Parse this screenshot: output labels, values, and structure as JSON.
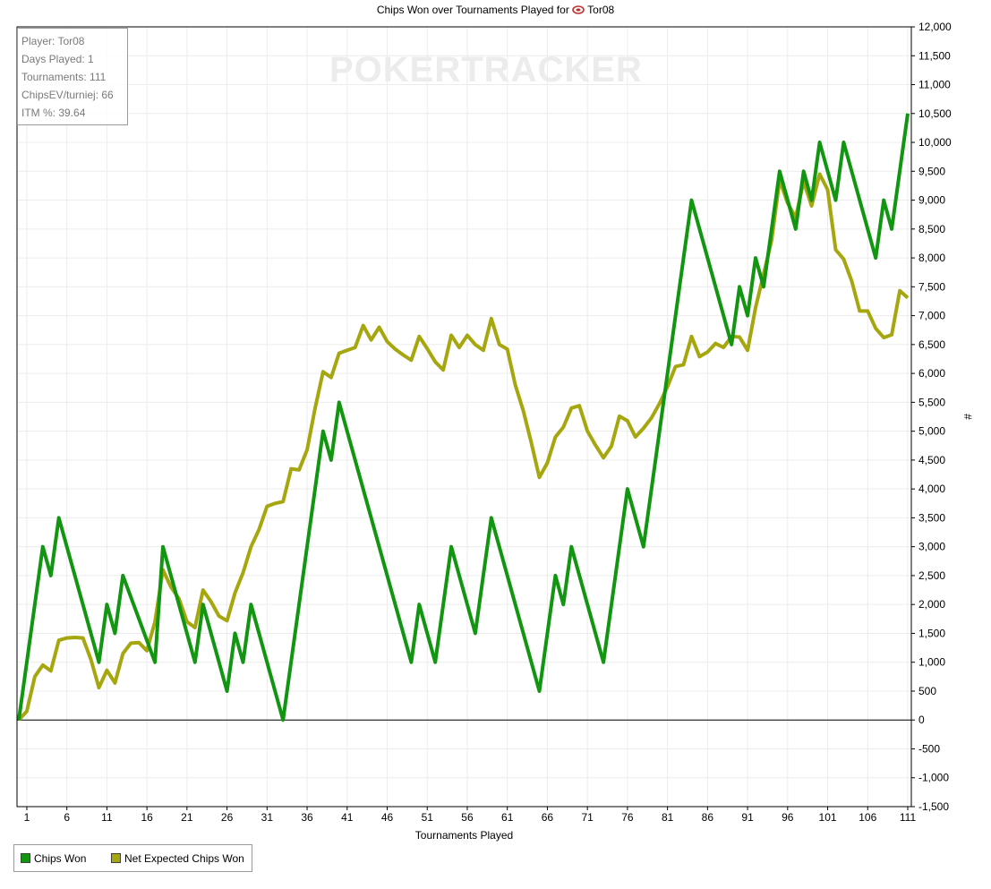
{
  "colors": {
    "chips_won": "#129612",
    "net_expected": "#a6a60e",
    "grid": "#ececec",
    "zero_line": "#000000"
  },
  "watermark": "POKERTRACKER",
  "info_box": {
    "lines": [
      "Player: Tor08",
      "Days Played: 1",
      "Tournaments: 111",
      "ChipsEV/turniej: 66",
      "ITM %: 39.64"
    ]
  },
  "chart_data": {
    "type": "line",
    "title": "Chips Won over Tournaments Played for",
    "player_name": "Tor08",
    "xlabel": "Tournaments Played",
    "ylabel": "#",
    "xlim": [
      0,
      111
    ],
    "ylim": [
      -1500,
      12000
    ],
    "x_ticks": [
      1,
      6,
      11,
      16,
      21,
      26,
      31,
      36,
      41,
      46,
      51,
      56,
      61,
      66,
      71,
      76,
      81,
      86,
      91,
      96,
      101,
      106,
      111
    ],
    "y_ticks": [
      -1500,
      -1000,
      -500,
      0,
      500,
      1000,
      1500,
      2000,
      2500,
      3000,
      3500,
      4000,
      4500,
      5000,
      5500,
      6000,
      6500,
      7000,
      7500,
      8000,
      8500,
      9000,
      9500,
      10000,
      10500,
      11000,
      11500,
      12000
    ],
    "y_tick_labels": [
      "-1,500",
      "-1,000",
      "-500",
      "0",
      "500",
      "1,000",
      "1,500",
      "2,000",
      "2,500",
      "3,000",
      "3,500",
      "4,000",
      "4,500",
      "5,000",
      "5,500",
      "6,000",
      "6,500",
      "7,000",
      "7,500",
      "8,000",
      "8,500",
      "9,000",
      "9,500",
      "10,000",
      "10,500",
      "11,000",
      "11,500",
      "12,000"
    ],
    "grid": true,
    "legend_position": "bottom-left",
    "series": [
      {
        "name": "Chips Won",
        "points": [
          [
            0,
            0
          ],
          [
            3,
            3000
          ],
          [
            4,
            2500
          ],
          [
            5,
            3500
          ],
          [
            10,
            1000
          ],
          [
            11,
            2000
          ],
          [
            12,
            1500
          ],
          [
            13,
            2500
          ],
          [
            17,
            1000
          ],
          [
            18,
            3000
          ],
          [
            22,
            1000
          ],
          [
            23,
            2000
          ],
          [
            26,
            500
          ],
          [
            27,
            1500
          ],
          [
            28,
            1000
          ],
          [
            29,
            2000
          ],
          [
            33,
            0
          ],
          [
            38,
            5000
          ],
          [
            39,
            4500
          ],
          [
            40,
            5500
          ],
          [
            49,
            1000
          ],
          [
            50,
            2000
          ],
          [
            52,
            1000
          ],
          [
            54,
            3000
          ],
          [
            57,
            1500
          ],
          [
            59,
            3500
          ],
          [
            65,
            500
          ],
          [
            67,
            2500
          ],
          [
            68,
            2000
          ],
          [
            69,
            3000
          ],
          [
            73,
            1000
          ],
          [
            76,
            4000
          ],
          [
            78,
            3000
          ],
          [
            84,
            9000
          ],
          [
            89,
            6500
          ],
          [
            90,
            7500
          ],
          [
            91,
            7000
          ],
          [
            92,
            8000
          ],
          [
            93,
            7500
          ],
          [
            95,
            9500
          ],
          [
            97,
            8500
          ],
          [
            98,
            9500
          ],
          [
            99,
            9000
          ],
          [
            100,
            10000
          ],
          [
            102,
            9000
          ],
          [
            103,
            10000
          ],
          [
            107,
            8000
          ],
          [
            108,
            9000
          ],
          [
            109,
            8500
          ],
          [
            111,
            10500
          ]
        ]
      },
      {
        "name": "Net Expected Chips Won",
        "points": [
          [
            0,
            0
          ],
          [
            1,
            150
          ],
          [
            2,
            750
          ],
          [
            3,
            950
          ],
          [
            4,
            850
          ],
          [
            5,
            1380
          ],
          [
            6,
            1420
          ],
          [
            7,
            1430
          ],
          [
            8,
            1420
          ],
          [
            9,
            1050
          ],
          [
            10,
            560
          ],
          [
            11,
            860
          ],
          [
            12,
            640
          ],
          [
            13,
            1150
          ],
          [
            14,
            1330
          ],
          [
            15,
            1340
          ],
          [
            16,
            1200
          ],
          [
            17,
            1700
          ],
          [
            18,
            2600
          ],
          [
            19,
            2300
          ],
          [
            20,
            2100
          ],
          [
            21,
            1700
          ],
          [
            22,
            1600
          ],
          [
            23,
            2250
          ],
          [
            24,
            2050
          ],
          [
            25,
            1800
          ],
          [
            26,
            1720
          ],
          [
            27,
            2200
          ],
          [
            28,
            2550
          ],
          [
            29,
            3000
          ],
          [
            30,
            3300
          ],
          [
            31,
            3700
          ],
          [
            32,
            3750
          ],
          [
            33,
            3780
          ],
          [
            34,
            4350
          ],
          [
            35,
            4330
          ],
          [
            36,
            4680
          ],
          [
            37,
            5400
          ],
          [
            38,
            6030
          ],
          [
            39,
            5930
          ],
          [
            40,
            6350
          ],
          [
            41,
            6400
          ],
          [
            42,
            6450
          ],
          [
            43,
            6830
          ],
          [
            44,
            6580
          ],
          [
            45,
            6800
          ],
          [
            46,
            6550
          ],
          [
            47,
            6420
          ],
          [
            48,
            6320
          ],
          [
            49,
            6230
          ],
          [
            50,
            6640
          ],
          [
            51,
            6430
          ],
          [
            52,
            6200
          ],
          [
            53,
            6060
          ],
          [
            54,
            6660
          ],
          [
            55,
            6450
          ],
          [
            56,
            6660
          ],
          [
            57,
            6500
          ],
          [
            58,
            6400
          ],
          [
            59,
            6950
          ],
          [
            60,
            6500
          ],
          [
            61,
            6420
          ],
          [
            62,
            5800
          ],
          [
            63,
            5350
          ],
          [
            64,
            4800
          ],
          [
            65,
            4200
          ],
          [
            66,
            4450
          ],
          [
            67,
            4900
          ],
          [
            68,
            5070
          ],
          [
            69,
            5400
          ],
          [
            70,
            5440
          ],
          [
            71,
            5000
          ],
          [
            72,
            4760
          ],
          [
            73,
            4540
          ],
          [
            74,
            4740
          ],
          [
            75,
            5260
          ],
          [
            76,
            5180
          ],
          [
            77,
            4900
          ],
          [
            78,
            5050
          ],
          [
            79,
            5230
          ],
          [
            80,
            5480
          ],
          [
            81,
            5770
          ],
          [
            82,
            6120
          ],
          [
            83,
            6150
          ],
          [
            84,
            6640
          ],
          [
            85,
            6290
          ],
          [
            86,
            6370
          ],
          [
            87,
            6520
          ],
          [
            88,
            6450
          ],
          [
            89,
            6640
          ],
          [
            90,
            6630
          ],
          [
            91,
            6400
          ],
          [
            92,
            7140
          ],
          [
            93,
            7720
          ],
          [
            94,
            8300
          ],
          [
            95,
            9350
          ],
          [
            96,
            8950
          ],
          [
            97,
            8700
          ],
          [
            98,
            9320
          ],
          [
            99,
            8900
          ],
          [
            100,
            9450
          ],
          [
            101,
            9180
          ],
          [
            102,
            8140
          ],
          [
            103,
            7980
          ],
          [
            104,
            7600
          ],
          [
            105,
            7080
          ],
          [
            106,
            7080
          ],
          [
            107,
            6780
          ],
          [
            108,
            6620
          ],
          [
            109,
            6670
          ],
          [
            110,
            7430
          ],
          [
            111,
            7310
          ]
        ]
      }
    ]
  },
  "legend": {
    "items": [
      "Chips Won",
      "Net Expected Chips Won"
    ]
  }
}
